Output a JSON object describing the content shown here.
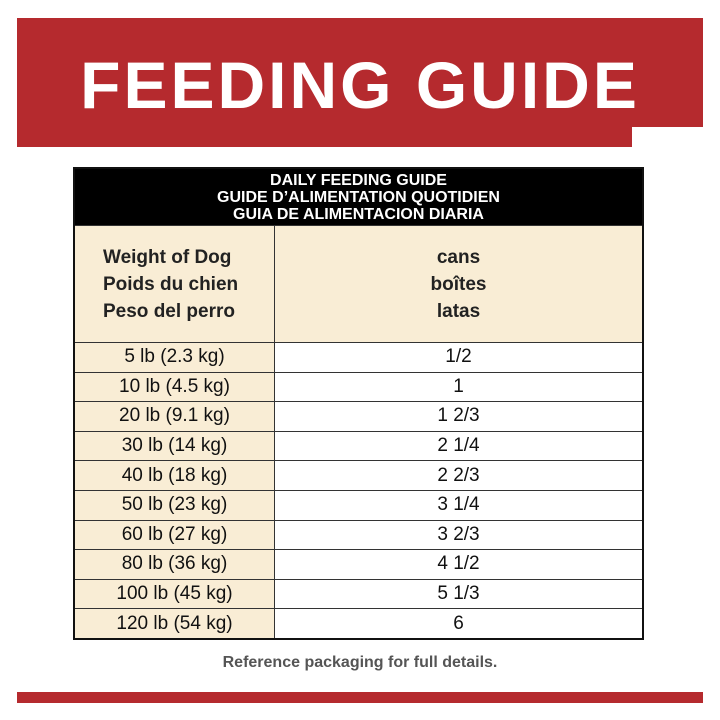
{
  "header": {
    "title": "FEEDING GUIDE"
  },
  "table": {
    "heading": [
      "DAILY FEEDING GUIDE",
      "GUIDE D’ALIMENTATION QUOTIDIEN",
      "GUIA DE ALIMENTACION DIARIA"
    ],
    "columns": [
      [
        "Weight of Dog",
        "Poids du chien",
        "Peso del perro"
      ],
      [
        "cans",
        "boîtes",
        "latas"
      ]
    ],
    "rows": [
      [
        "5 lb (2.3 kg)",
        "1/2"
      ],
      [
        "10 lb (4.5 kg)",
        "1"
      ],
      [
        "20 lb (9.1 kg)",
        "1 2/3"
      ],
      [
        "30 lb (14 kg)",
        "2 1/4"
      ],
      [
        "40 lb (18 kg)",
        "2 2/3"
      ],
      [
        "50 lb (23 kg)",
        "3 1/4"
      ],
      [
        "60 lb (27 kg)",
        "3 2/3"
      ],
      [
        "80 lb (36 kg)",
        "4 1/2"
      ],
      [
        "100 lb (45 kg)",
        "5 1/3"
      ],
      [
        "120 lb (54 kg)",
        "6"
      ]
    ]
  },
  "footer": {
    "note": "Reference packaging for full details."
  }
}
